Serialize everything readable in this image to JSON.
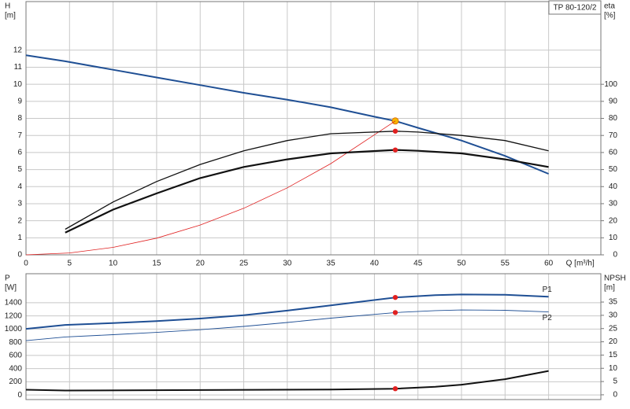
{
  "chart_data": [
    {
      "type": "line",
      "title": "TP 80-120/2",
      "ylabel": "H",
      "yunit": "[m]",
      "y2label": "eta",
      "y2unit": "[%]",
      "xlabel": "Q [m³/h]",
      "xlim": [
        0,
        66
      ],
      "xticks": [
        0,
        5,
        10,
        15,
        20,
        25,
        30,
        35,
        40,
        45,
        50,
        55,
        60
      ],
      "xtick_labels": true,
      "ylim": [
        0,
        14.85
      ],
      "yticks": [
        0,
        1,
        2,
        3,
        4,
        5,
        6,
        7,
        8,
        9,
        10,
        11,
        12
      ],
      "y2lim": [
        0,
        148.5
      ],
      "y2ticks": [
        0,
        10,
        20,
        30,
        40,
        50,
        60,
        70,
        80,
        90,
        100
      ],
      "grid": true,
      "duty_q": 42.4,
      "series": [
        {
          "color": "#1f4f94",
          "width": 2,
          "marker": "#f5b800",
          "x": [
            0,
            4.5,
            10,
            15,
            20,
            25,
            30,
            35,
            40,
            42.4,
            45,
            50,
            55,
            60
          ],
          "values": [
            11.7,
            11.35,
            10.85,
            10.4,
            9.95,
            9.5,
            9.1,
            8.65,
            8.1,
            7.85,
            7.45,
            6.7,
            5.8,
            4.75
          ]
        },
        {
          "color": "#e02020",
          "width": 0.8,
          "x": [
            0,
            5,
            10,
            15,
            20,
            25,
            30,
            35,
            42.4
          ],
          "values": [
            0,
            0.11,
            0.44,
            0.98,
            1.75,
            2.73,
            3.93,
            5.35,
            7.85
          ]
        },
        {
          "color": "#111111",
          "width": 1.3,
          "axis": "y2",
          "marker": "#e02020",
          "x": [
            4.5,
            10,
            15,
            20,
            25,
            30,
            35,
            42.4,
            45,
            50,
            55,
            60
          ],
          "values": [
            15,
            31,
            43,
            53,
            61,
            67,
            71,
            72.5,
            72,
            70,
            67,
            61
          ]
        },
        {
          "color": "#111111",
          "width": 2.2,
          "axis": "y2",
          "marker": "#e02020",
          "x": [
            4.5,
            10,
            15,
            20,
            25,
            30,
            35,
            42.4,
            45,
            50,
            55,
            60
          ],
          "values": [
            13,
            26.5,
            36,
            45,
            51.5,
            56,
            59.5,
            61.5,
            61,
            59.5,
            56,
            51.5
          ]
        }
      ]
    },
    {
      "type": "line",
      "ylabel": "P",
      "yunit": "[W]",
      "y2label": "NPSH",
      "y2unit": "[m]",
      "xlim": [
        0,
        66
      ],
      "xticks": [
        0,
        5,
        10,
        15,
        20,
        25,
        30,
        35,
        40,
        45,
        50,
        55,
        60
      ],
      "xtick_labels": false,
      "ylim": [
        -70,
        1840
      ],
      "yticks": [
        0,
        200,
        400,
        600,
        800,
        1000,
        1200,
        1400
      ],
      "y2lim": [
        -1.8,
        45.7
      ],
      "y2ticks": [
        0,
        5,
        10,
        15,
        20,
        25,
        30,
        35
      ],
      "grid": true,
      "duty_q": 42.4,
      "series": [
        {
          "name": "P1",
          "color": "#1f4f94",
          "width": 2,
          "marker": "#e02020",
          "x": [
            0,
            4.5,
            10,
            15,
            20,
            25,
            30,
            35,
            42.4,
            47,
            50,
            55,
            60
          ],
          "values": [
            1003,
            1063,
            1090,
            1120,
            1160,
            1210,
            1280,
            1360,
            1480,
            1515,
            1525,
            1520,
            1490
          ]
        },
        {
          "name": "P2",
          "color": "#1f4f94",
          "width": 0.9,
          "marker": "#e02020",
          "x": [
            0,
            4.5,
            10,
            15,
            20,
            25,
            30,
            35,
            42.4,
            47,
            50,
            55,
            60
          ],
          "values": [
            824,
            880,
            915,
            950,
            990,
            1040,
            1100,
            1165,
            1250,
            1280,
            1290,
            1285,
            1260
          ]
        },
        {
          "color": "#111111",
          "width": 2,
          "axis": "y2",
          "marker": "#e02020",
          "x": [
            0,
            4.5,
            20,
            35,
            42.4,
            47,
            50,
            55,
            60
          ],
          "values": [
            1.9,
            1.6,
            1.8,
            2.0,
            2.3,
            3.0,
            3.8,
            5.9,
            9.0
          ]
        }
      ]
    }
  ]
}
